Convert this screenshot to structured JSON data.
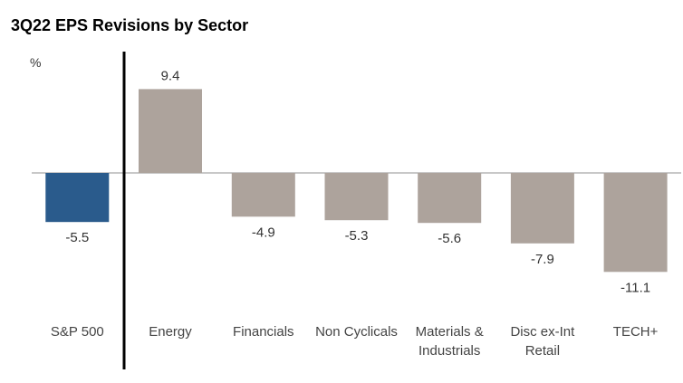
{
  "chart_data": {
    "type": "bar",
    "title": "3Q22 EPS Revisions by Sector",
    "ylabel": "%",
    "categories": [
      "S&P 500",
      "Energy",
      "Financials",
      "Non Cyclicals",
      "Materials & Industrials",
      "Disc ex-Int Retail",
      "TECH+"
    ],
    "category_lines": [
      [
        "S&P 500"
      ],
      [
        "Energy"
      ],
      [
        "Financials"
      ],
      [
        "Non Cyclicals"
      ],
      [
        "Materials &",
        "Industrials"
      ],
      [
        "Disc ex-Int",
        "Retail"
      ],
      [
        "TECH+"
      ]
    ],
    "values": [
      -5.5,
      9.4,
      -4.9,
      -5.3,
      -5.6,
      -7.9,
      -11.1
    ],
    "value_labels": [
      "-5.5",
      "9.4",
      "-4.9",
      "-5.3",
      "-5.6",
      "-7.9",
      "-11.1"
    ],
    "colors": [
      "#2a5b8c",
      "#ada39c",
      "#ada39c",
      "#ada39c",
      "#ada39c",
      "#ada39c",
      "#ada39c"
    ],
    "grid": false,
    "legend": "none"
  }
}
